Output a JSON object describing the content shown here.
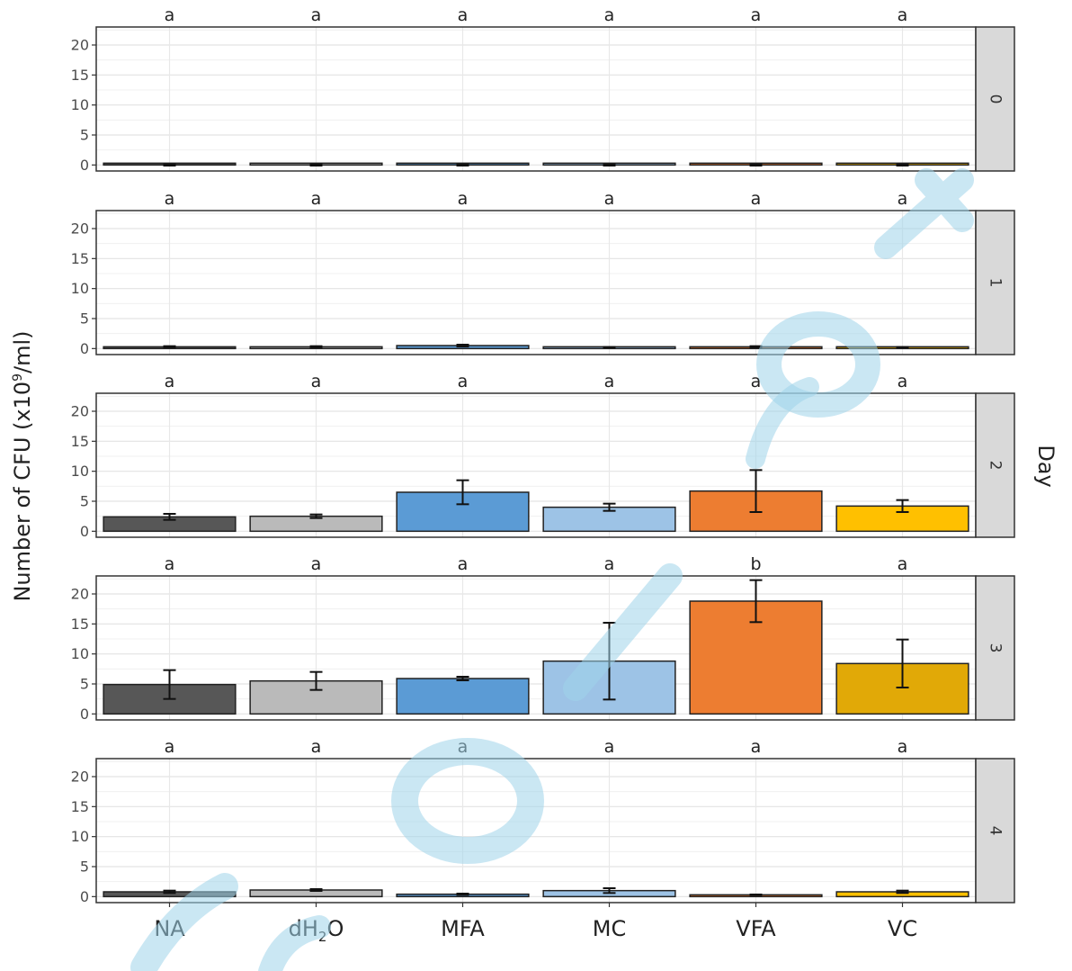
{
  "chart_data": {
    "type": "bar",
    "categories": [
      "NA",
      "dH2O",
      "MFA",
      "MC",
      "VFA",
      "VC"
    ],
    "category_labels": [
      {
        "main": "NA"
      },
      {
        "main": "dH",
        "sub": "2",
        "tail": "O"
      },
      {
        "main": "MFA"
      },
      {
        "main": "MC"
      },
      {
        "main": "VFA"
      },
      {
        "main": "VC"
      }
    ],
    "ylabel": {
      "main": "Number of CFU (x10",
      "sup": "9",
      "tail": "/ml)"
    },
    "facet_label": "Day",
    "ylim": [
      -1,
      23
    ],
    "yticks": [
      0,
      5,
      10,
      15,
      20
    ],
    "colors": [
      "#575757",
      "#bababa",
      "#5b9bd5",
      "#9dc3e6",
      "#ed7d31",
      "#ffc000"
    ],
    "colors_day3": [
      "#575757",
      "#bababa",
      "#5b9bd5",
      "#9dc3e6",
      "#ed7d31",
      "#e1a907"
    ],
    "panels": [
      {
        "day": "0",
        "values": [
          0,
          0,
          0,
          0,
          0,
          0
        ],
        "errors": [
          0.1,
          0.1,
          0.1,
          0.1,
          0.1,
          0.1
        ],
        "letters": [
          "a",
          "a",
          "a",
          "a",
          "a",
          "a"
        ]
      },
      {
        "day": "1",
        "values": [
          0.3,
          0.3,
          0.5,
          0.2,
          0.3,
          0.2
        ],
        "errors": [
          0.1,
          0.1,
          0.15,
          0.05,
          0.1,
          0.05
        ],
        "letters": [
          "a",
          "a",
          "a",
          "a",
          "a",
          "a"
        ]
      },
      {
        "day": "2",
        "values": [
          2.4,
          2.5,
          6.5,
          4.0,
          6.7,
          4.2
        ],
        "errors": [
          0.5,
          0.3,
          2.0,
          0.6,
          3.5,
          1.0
        ],
        "letters": [
          "a",
          "a",
          "a",
          "a",
          "a",
          "a"
        ]
      },
      {
        "day": "3",
        "values": [
          4.9,
          5.5,
          5.9,
          8.8,
          18.8,
          8.4
        ],
        "errors": [
          2.4,
          1.5,
          0.3,
          6.4,
          3.5,
          4.0
        ],
        "letters": [
          "a",
          "a",
          "a",
          "a",
          "b",
          "a"
        ]
      },
      {
        "day": "4",
        "values": [
          0.8,
          1.1,
          0.4,
          1.0,
          0.3,
          0.8
        ],
        "errors": [
          0.2,
          0.15,
          0.1,
          0.4,
          0.05,
          0.2
        ],
        "letters": [
          "a",
          "a",
          "a",
          "a",
          "a",
          "a"
        ]
      }
    ]
  }
}
